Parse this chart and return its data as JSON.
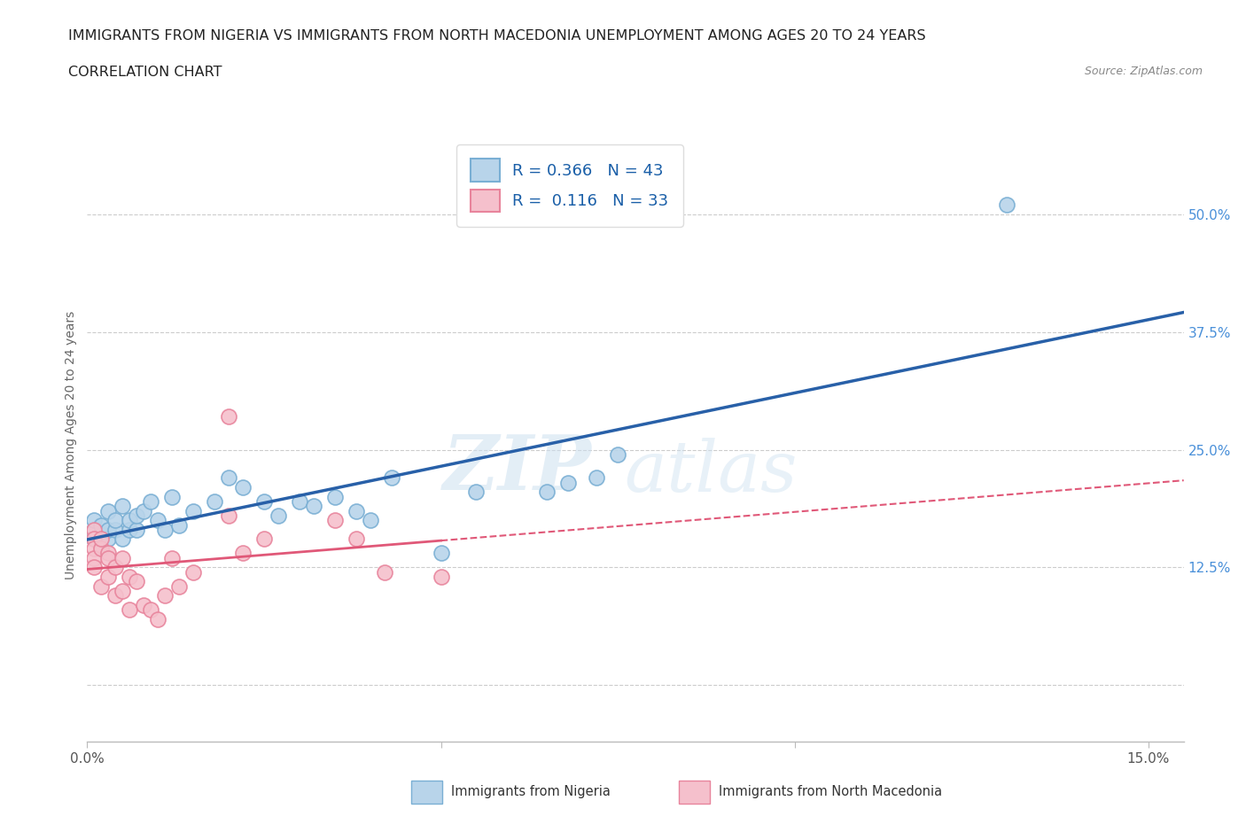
{
  "title_line1": "IMMIGRANTS FROM NIGERIA VS IMMIGRANTS FROM NORTH MACEDONIA UNEMPLOYMENT AMONG AGES 20 TO 24 YEARS",
  "title_line2": "CORRELATION CHART",
  "source": "Source: ZipAtlas.com",
  "ylabel": "Unemployment Among Ages 20 to 24 years",
  "xlim": [
    0.0,
    0.155
  ],
  "ylim": [
    -0.06,
    0.57
  ],
  "xticks": [
    0.0,
    0.05,
    0.1,
    0.15
  ],
  "xticklabels": [
    "0.0%",
    "",
    "",
    "15.0%"
  ],
  "yticks": [
    0.0,
    0.125,
    0.25,
    0.375,
    0.5
  ],
  "yticklabels": [
    "",
    "12.5%",
    "25.0%",
    "37.5%",
    "50.0%"
  ],
  "nigeria_color": "#b8d4ea",
  "nigeria_edge": "#7aafd4",
  "macedonia_color": "#f5c0cc",
  "macedonia_edge": "#e8849c",
  "trend_nigeria_color": "#2860a8",
  "trend_macedonia_color": "#e05878",
  "legend_r_nigeria": "R = 0.366",
  "legend_n_nigeria": "N = 43",
  "legend_r_macedonia": "R =  0.116",
  "legend_n_macedonia": "N = 33",
  "watermark_zip": "ZIP",
  "watermark_atlas": "atlas",
  "nigeria_x": [
    0.001,
    0.001,
    0.001,
    0.001,
    0.002,
    0.002,
    0.002,
    0.003,
    0.003,
    0.003,
    0.004,
    0.004,
    0.005,
    0.005,
    0.006,
    0.006,
    0.007,
    0.007,
    0.008,
    0.009,
    0.01,
    0.011,
    0.012,
    0.013,
    0.015,
    0.018,
    0.02,
    0.022,
    0.025,
    0.027,
    0.03,
    0.032,
    0.035,
    0.038,
    0.04,
    0.043,
    0.05,
    0.055,
    0.065,
    0.068,
    0.072,
    0.075,
    0.13
  ],
  "nigeria_y": [
    0.155,
    0.155,
    0.165,
    0.175,
    0.145,
    0.16,
    0.17,
    0.155,
    0.165,
    0.185,
    0.165,
    0.175,
    0.155,
    0.19,
    0.165,
    0.175,
    0.165,
    0.18,
    0.185,
    0.195,
    0.175,
    0.165,
    0.2,
    0.17,
    0.185,
    0.195,
    0.22,
    0.21,
    0.195,
    0.18,
    0.195,
    0.19,
    0.2,
    0.185,
    0.175,
    0.22,
    0.14,
    0.205,
    0.205,
    0.215,
    0.22,
    0.245,
    0.51
  ],
  "macedonia_x": [
    0.001,
    0.001,
    0.001,
    0.001,
    0.001,
    0.002,
    0.002,
    0.002,
    0.003,
    0.003,
    0.003,
    0.004,
    0.004,
    0.005,
    0.005,
    0.006,
    0.006,
    0.007,
    0.008,
    0.009,
    0.01,
    0.011,
    0.012,
    0.013,
    0.015,
    0.02,
    0.02,
    0.022,
    0.025,
    0.035,
    0.038,
    0.042,
    0.05
  ],
  "macedonia_y": [
    0.165,
    0.155,
    0.145,
    0.135,
    0.125,
    0.145,
    0.155,
    0.105,
    0.14,
    0.135,
    0.115,
    0.125,
    0.095,
    0.135,
    0.1,
    0.115,
    0.08,
    0.11,
    0.085,
    0.08,
    0.07,
    0.095,
    0.135,
    0.105,
    0.12,
    0.285,
    0.18,
    0.14,
    0.155,
    0.175,
    0.155,
    0.12,
    0.115
  ],
  "grid_color": "#cccccc",
  "bg_color": "#ffffff",
  "title_fontsize": 11.5,
  "axis_label_fontsize": 10,
  "tick_fontsize": 11,
  "legend_fontsize": 13
}
